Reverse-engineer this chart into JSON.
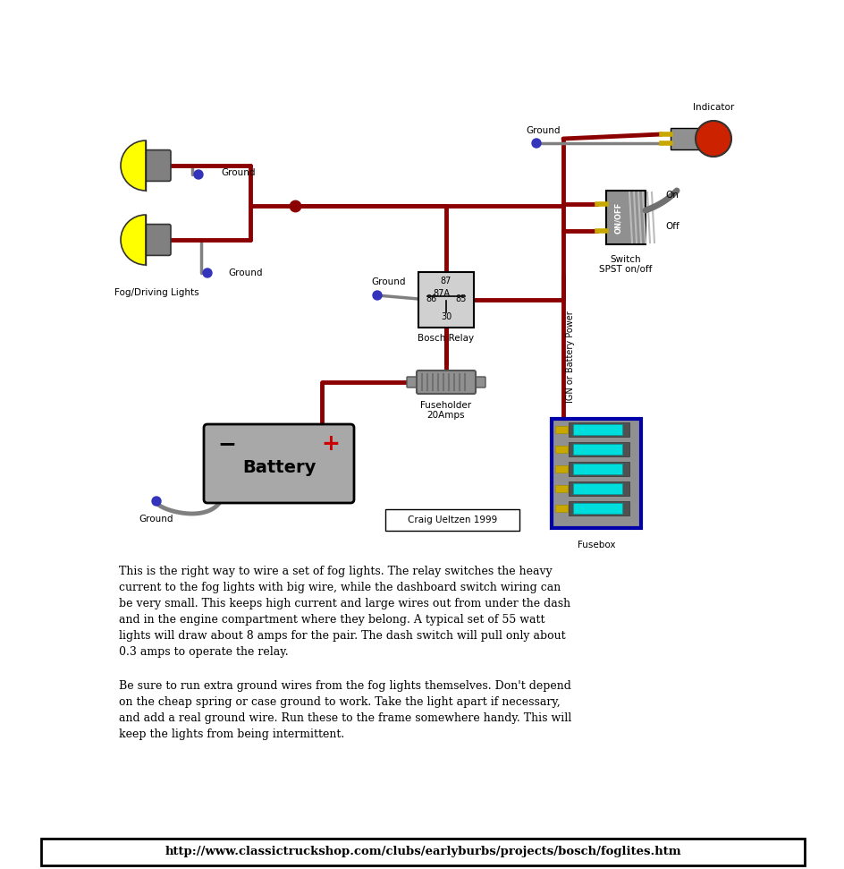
{
  "bg_color": "#ffffff",
  "wire_red": "#8b0000",
  "wire_gray": "#808080",
  "fog_yellow": "#ffff00",
  "fog_body": "#808080",
  "relay_fill": "#d0d0d0",
  "battery_fill": "#a8a8a8",
  "switch_fill": "#909090",
  "fusebox_fill": "#909090",
  "fusebox_border": "#0000aa",
  "fuse_dark": "#505050",
  "fuse_cyan": "#00dddd",
  "indicator_red": "#cc2200",
  "gold": "#c8a800",
  "ground_dot": "#3333bb",
  "junction_dot": "#8b0000",
  "text_color": "#000000",
  "text1_line1": "This is the right way to wire a set of fog lights. The relay switches the heavy",
  "text1_line2": "current to the fog lights with big wire, while the dashboard switch wiring can",
  "text1_line3": "be very small. This keeps high current and large wires out from under the dash",
  "text1_line4": "and in the engine compartment where they belong. A typical set of 55 watt",
  "text1_line5": "lights will draw about 8 amps for the pair. The dash switch will pull only about",
  "text1_line6": "0.3 amps to operate the relay.",
  "text2_line1": "Be sure to run extra ground wires from the fog lights themselves. Don't depend",
  "text2_line2": "on the cheap spring or case ground to work. Take the light apart if necessary,",
  "text2_line3": "and add a real ground wire. Run these to the frame somewhere handy. This will",
  "text2_line4": "keep the lights from being intermittent.",
  "url": "http://www.classictruckshop.com/clubs/earlyburbs/projects/bosch/foglites.htm",
  "credit": "Craig Ueltzen 1999",
  "fig_w": 9.45,
  "fig_h": 9.71,
  "dpi": 100
}
